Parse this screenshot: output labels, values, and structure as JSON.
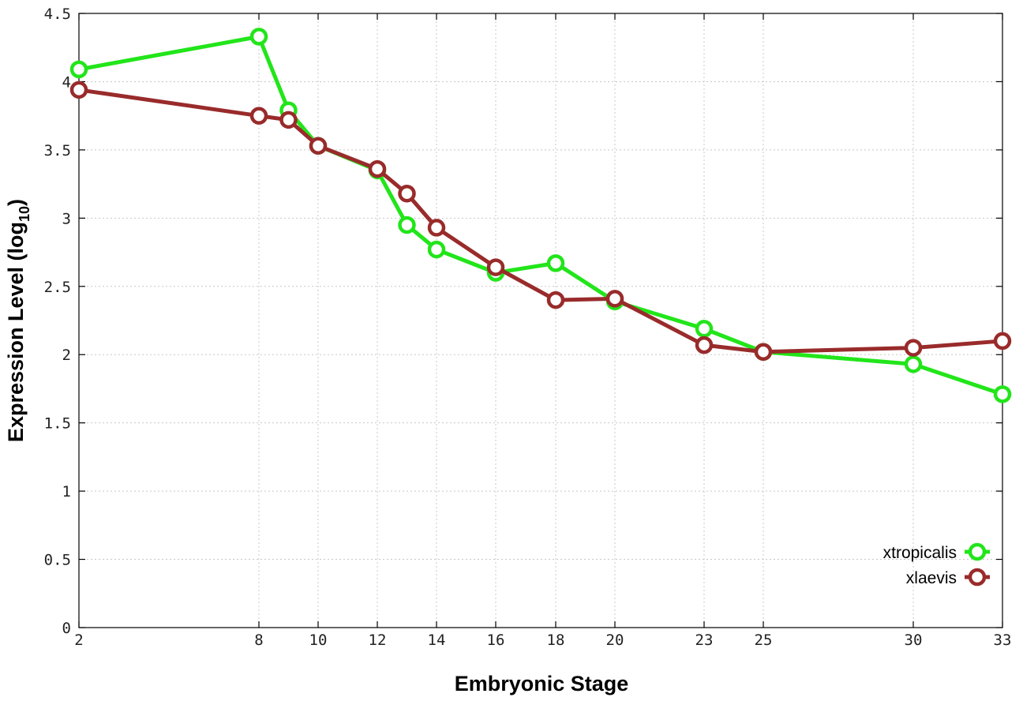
{
  "chart_data": {
    "type": "line",
    "title": "",
    "xlabel": "Embryonic Stage",
    "ylabel_main": "Expression Level (log",
    "ylabel_sub": "10",
    "ylabel_close": ")",
    "x_ticks": [
      2,
      8,
      10,
      12,
      14,
      16,
      18,
      20,
      23,
      25,
      30,
      33
    ],
    "x_tick_labels": [
      "2",
      "8",
      "10",
      "12",
      "14",
      "16",
      "18",
      "20",
      "23",
      "25",
      "30",
      "33"
    ],
    "y_ticks": [
      0,
      0.5,
      1,
      1.5,
      2,
      2.5,
      3,
      3.5,
      4,
      4.5
    ],
    "y_tick_labels": [
      "0",
      "0.5",
      "1",
      "1.5",
      "2",
      "2.5",
      "3",
      "3.5",
      "4",
      "4.5"
    ],
    "ylim": [
      0,
      4.5
    ],
    "grid": true,
    "legend_position": "bottom-right",
    "series": [
      {
        "name": "xtropicalis",
        "color": "#22e51a",
        "x": [
          2,
          8,
          9,
          10,
          12,
          13,
          14,
          16,
          18,
          20,
          23,
          25,
          30,
          33
        ],
        "y": [
          4.09,
          4.33,
          3.79,
          3.53,
          3.35,
          2.95,
          2.77,
          2.6,
          2.67,
          2.39,
          2.19,
          2.02,
          1.93,
          1.71
        ]
      },
      {
        "name": "xlaevis",
        "color": "#992b2b",
        "x": [
          2,
          8,
          9,
          10,
          12,
          13,
          14,
          16,
          18,
          20,
          23,
          25,
          30,
          33
        ],
        "y": [
          3.94,
          3.75,
          3.72,
          3.53,
          3.36,
          3.18,
          2.93,
          2.64,
          2.4,
          2.41,
          2.07,
          2.02,
          2.05,
          2.1
        ]
      }
    ]
  }
}
